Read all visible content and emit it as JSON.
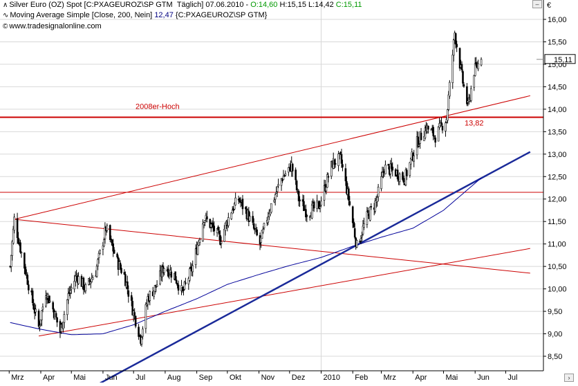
{
  "header": {
    "line1": {
      "icon": "chart-icon",
      "instrument": "Silver Euro (OZ) Spot [C:PXAGEUROZ\\SP GTM",
      "period": "Täglich] 07.06.2010",
      "open": "O:14,60",
      "high": "H:15,15",
      "low": "L:14,42",
      "close": "C:15,11"
    },
    "line2": {
      "icon": "moving-average-icon",
      "label": "Moving Average Simple [Close, 200, Nein]",
      "value": "12,47",
      "symbol": "{C:PXAGEUROZ\\SP GTM}"
    },
    "line3": {
      "icon": "copyright-icon",
      "text": "www.tradesignalonline.com"
    }
  },
  "colors": {
    "background": "#ffffff",
    "candle": "#000000",
    "ma": "#000099",
    "trend_red": "#cc0000",
    "trend_blue": "#1a2a99",
    "grid": "#d8d8d8",
    "axis_text": "#000000"
  },
  "chart_data": {
    "type": "candlestick",
    "currency_symbol": "€",
    "y_range": [
      8.25,
      16.25
    ],
    "y_ticks": [
      "16,00",
      "15,50",
      "15,00",
      "14,50",
      "14,00",
      "13,50",
      "13,00",
      "12,50",
      "12,00",
      "11,50",
      "11,00",
      "10,50",
      "10,00",
      "9,50",
      "9,00",
      "8,50"
    ],
    "y_tick_values": [
      16.0,
      15.5,
      15.0,
      14.5,
      14.0,
      13.5,
      13.0,
      12.5,
      12.0,
      11.5,
      11.0,
      10.5,
      10.0,
      9.5,
      9.0,
      8.5
    ],
    "x_ticks": [
      "Mrz",
      "Apr",
      "Mai",
      "Jun",
      "Jul",
      "Aug",
      "Sep",
      "Okt",
      "Nov",
      "Dez",
      "2010",
      "Feb",
      "Mrz",
      "Apr",
      "Mai",
      "Jun",
      "Jul"
    ],
    "last_price_label": "15,11",
    "last_price": 15.11,
    "ma_last_value": 12.47,
    "horizontal_levels": [
      {
        "value": 13.82,
        "label": "13,82"
      },
      {
        "value": 12.15,
        "label": ""
      }
    ],
    "annotations": [
      {
        "text": "2008er-Hoch",
        "anchor_value": 13.82
      }
    ],
    "anchors": [
      {
        "date": "2009-03-02",
        "price": 10.5
      },
      {
        "date": "2009-03-06",
        "price": 11.55
      },
      {
        "date": "2009-03-13",
        "price": 10.8
      },
      {
        "date": "2009-03-23",
        "price": 9.8
      },
      {
        "date": "2009-03-30",
        "price": 9.15
      },
      {
        "date": "2009-04-06",
        "price": 9.95
      },
      {
        "date": "2009-04-13",
        "price": 9.55
      },
      {
        "date": "2009-04-20",
        "price": 9.05
      },
      {
        "date": "2009-04-28",
        "price": 9.85
      },
      {
        "date": "2009-05-06",
        "price": 10.3
      },
      {
        "date": "2009-05-15",
        "price": 10.0
      },
      {
        "date": "2009-05-25",
        "price": 10.4
      },
      {
        "date": "2009-06-04",
        "price": 11.35
      },
      {
        "date": "2009-06-15",
        "price": 10.6
      },
      {
        "date": "2009-06-22",
        "price": 10.3
      },
      {
        "date": "2009-06-30",
        "price": 9.55
      },
      {
        "date": "2009-07-08",
        "price": 8.9
      },
      {
        "date": "2009-07-15",
        "price": 9.8
      },
      {
        "date": "2009-07-23",
        "price": 10.05
      },
      {
        "date": "2009-07-31",
        "price": 10.5
      },
      {
        "date": "2009-08-10",
        "price": 10.3
      },
      {
        "date": "2009-08-18",
        "price": 9.9
      },
      {
        "date": "2009-08-28",
        "price": 10.5
      },
      {
        "date": "2009-09-08",
        "price": 11.6
      },
      {
        "date": "2009-09-17",
        "price": 11.35
      },
      {
        "date": "2009-09-24",
        "price": 11.1
      },
      {
        "date": "2009-10-05",
        "price": 11.75
      },
      {
        "date": "2009-10-12",
        "price": 12.0
      },
      {
        "date": "2009-10-21",
        "price": 11.65
      },
      {
        "date": "2009-11-02",
        "price": 11.0
      },
      {
        "date": "2009-11-11",
        "price": 11.75
      },
      {
        "date": "2009-11-23",
        "price": 12.45
      },
      {
        "date": "2009-12-03",
        "price": 12.75
      },
      {
        "date": "2009-12-10",
        "price": 12.0
      },
      {
        "date": "2009-12-18",
        "price": 11.7
      },
      {
        "date": "2009-12-30",
        "price": 11.85
      },
      {
        "date": "2010-01-12",
        "price": 12.8
      },
      {
        "date": "2010-01-20",
        "price": 12.9
      },
      {
        "date": "2010-01-28",
        "price": 12.0
      },
      {
        "date": "2010-02-05",
        "price": 10.95
      },
      {
        "date": "2010-02-15",
        "price": 11.6
      },
      {
        "date": "2010-02-24",
        "price": 11.95
      },
      {
        "date": "2010-03-04",
        "price": 12.7
      },
      {
        "date": "2010-03-15",
        "price": 12.6
      },
      {
        "date": "2010-03-24",
        "price": 12.45
      },
      {
        "date": "2010-04-05",
        "price": 13.25
      },
      {
        "date": "2010-04-14",
        "price": 13.6
      },
      {
        "date": "2010-04-23",
        "price": 13.4
      },
      {
        "date": "2010-05-04",
        "price": 13.8
      },
      {
        "date": "2010-05-12",
        "price": 15.7
      },
      {
        "date": "2010-05-20",
        "price": 14.6
      },
      {
        "date": "2010-05-25",
        "price": 14.05
      },
      {
        "date": "2010-05-31",
        "price": 14.85
      },
      {
        "date": "2010-06-07",
        "price": 15.11
      }
    ],
    "ma_anchors": [
      {
        "date": "2009-03-02",
        "value": 9.25
      },
      {
        "date": "2009-04-01",
        "value": 9.1
      },
      {
        "date": "2009-05-01",
        "value": 8.98
      },
      {
        "date": "2009-06-01",
        "value": 9.0
      },
      {
        "date": "2009-07-01",
        "value": 9.2
      },
      {
        "date": "2009-08-01",
        "value": 9.5
      },
      {
        "date": "2009-09-01",
        "value": 9.78
      },
      {
        "date": "2009-10-01",
        "value": 10.1
      },
      {
        "date": "2009-11-01",
        "value": 10.32
      },
      {
        "date": "2009-12-01",
        "value": 10.52
      },
      {
        "date": "2010-01-01",
        "value": 10.7
      },
      {
        "date": "2010-02-01",
        "value": 10.95
      },
      {
        "date": "2010-03-01",
        "value": 11.15
      },
      {
        "date": "2010-04-01",
        "value": 11.35
      },
      {
        "date": "2010-05-01",
        "value": 11.75
      },
      {
        "date": "2010-06-07",
        "value": 12.47
      }
    ],
    "trendlines": [
      {
        "name": "",
        "color": "red",
        "from": {
          "date": "2009-03-06",
          "price": 11.55
        },
        "to": {
          "date": "2010-07-25",
          "price": 10.35
        }
      },
      {
        "name": "",
        "color": "red",
        "from": {
          "date": "2009-03-06",
          "price": 11.55
        },
        "to": {
          "date": "2010-07-25",
          "price": 14.3
        }
      },
      {
        "name": "",
        "color": "red",
        "from": {
          "date": "2009-03-30",
          "price": 8.95
        },
        "to": {
          "date": "2010-07-25",
          "price": 10.9
        }
      },
      {
        "name": "",
        "color": "blue",
        "from": {
          "date": "2009-05-25",
          "price": 7.85
        },
        "to": {
          "date": "2010-07-25",
          "price": 13.05
        }
      }
    ]
  }
}
